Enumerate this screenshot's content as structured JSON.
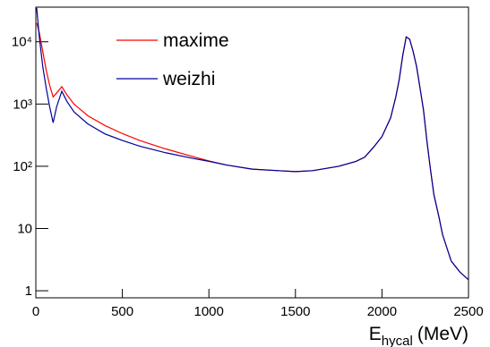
{
  "chart_data": {
    "type": "line",
    "xlabel": {
      "main": "E",
      "sub": "hycal",
      "unit": "(MeV)"
    },
    "x": [
      5,
      20,
      40,
      60,
      80,
      100,
      120,
      150,
      180,
      220,
      300,
      400,
      500,
      600,
      750,
      900,
      1000,
      1100,
      1250,
      1400,
      1500,
      1600,
      1750,
      1850,
      1900,
      1950,
      2000,
      2050,
      2080,
      2100,
      2120,
      2140,
      2160,
      2180,
      2200,
      2220,
      2240,
      2260,
      2280,
      2300,
      2330,
      2350,
      2400,
      2450,
      2500
    ],
    "series": [
      {
        "name": "maxime",
        "color": "#ff0000",
        "values": [
          20000,
          14000,
          7000,
          3500,
          2000,
          1300,
          1500,
          1900,
          1400,
          1000,
          650,
          450,
          335,
          260,
          190,
          145,
          122,
          105,
          90,
          85,
          82,
          85,
          100,
          120,
          140,
          200,
          300,
          600,
          1300,
          2500,
          6000,
          12000,
          11000,
          7000,
          4000,
          1800,
          800,
          250,
          90,
          35,
          15,
          8,
          3,
          2,
          1.5
        ]
      },
      {
        "name": "weizhi",
        "color": "#000099",
        "values": [
          35000,
          12000,
          4000,
          1800,
          900,
          500,
          900,
          1600,
          1100,
          750,
          480,
          330,
          260,
          210,
          165,
          135,
          120,
          105,
          90,
          85,
          82,
          85,
          100,
          120,
          140,
          200,
          300,
          600,
          1300,
          2500,
          6000,
          12000,
          11000,
          7000,
          4000,
          1800,
          800,
          250,
          90,
          35,
          15,
          8,
          3,
          2,
          1.5
        ]
      }
    ],
    "xlim": [
      0,
      2500
    ],
    "xticks": [
      0,
      500,
      1000,
      1500,
      2000,
      2500
    ],
    "ylim": [
      0.77,
      36000
    ],
    "log_y": true,
    "yticks": [
      1,
      10,
      {
        "value": 100,
        "label": "10²"
      },
      {
        "value": 1000,
        "label": "10³"
      },
      {
        "value": 10000,
        "label": "10⁴"
      }
    ],
    "legend": "upper-left"
  }
}
